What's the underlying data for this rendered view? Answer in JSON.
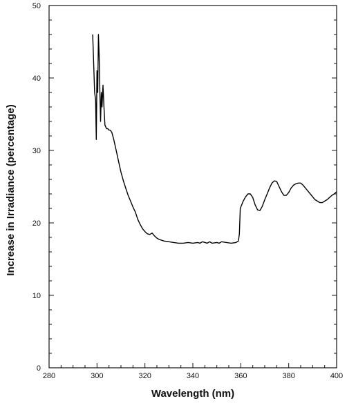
{
  "chart_data": {
    "type": "line",
    "xlabel": "Wavelength (nm)",
    "ylabel": "Increase in Irradiance (percentage)",
    "xlim": [
      280,
      400
    ],
    "ylim": [
      0,
      50
    ],
    "x_ticks": [
      280,
      300,
      320,
      340,
      360,
      380,
      400
    ],
    "y_ticks": [
      0,
      10,
      20,
      30,
      40,
      50
    ],
    "grid": false,
    "series": [
      {
        "x": [
          298.2,
          298.6,
          299.0,
          299.4,
          299.7,
          300.0,
          300.3,
          300.6,
          300.9,
          301.2,
          301.5,
          301.8,
          302.1,
          302.5,
          302.9,
          303.3,
          303.7,
          304.0,
          304.5,
          305.0,
          305.5,
          306.2,
          307.0,
          308.0,
          309.0,
          310.0,
          311.0,
          312.0,
          313.0,
          314.0,
          315.0,
          316.0,
          317.0,
          318.0,
          319.0,
          320.0,
          321.0,
          322.0,
          323.0,
          324.0,
          325.0,
          326.0,
          328.0,
          330.0,
          332.0,
          334.0,
          336.0,
          338.0,
          340.0,
          342.0,
          343.0,
          344.0,
          346.0,
          347.0,
          348.0,
          350.0,
          351.0,
          352.0,
          354.0,
          356.0,
          358.0,
          359.0,
          359.4,
          359.8,
          361.0,
          362.0,
          363.0,
          364.0,
          365.0,
          366.0,
          367.0,
          368.0,
          369.0,
          370.0,
          371.0,
          372.0,
          373.0,
          374.0,
          375.0,
          376.0,
          377.0,
          378.0,
          379.0,
          380.0,
          381.0,
          382.0,
          383.0,
          384.0,
          385.0,
          386.0,
          387.0,
          388.0,
          389.0,
          390.0,
          391.0,
          392.0,
          393.0,
          394.0,
          395.0,
          396.0,
          397.0,
          398.0,
          399.0,
          400.0
        ],
        "y": [
          46.0,
          42.0,
          38.0,
          37.0,
          31.5,
          41.0,
          38.0,
          46.0,
          43.0,
          38.0,
          34.0,
          38.0,
          36.0,
          39.0,
          36.0,
          33.5,
          33.2,
          33.0,
          33.0,
          32.8,
          32.8,
          32.5,
          31.5,
          30.0,
          28.5,
          27.0,
          25.8,
          24.8,
          23.8,
          23.0,
          22.2,
          21.5,
          20.5,
          19.8,
          19.2,
          18.8,
          18.5,
          18.4,
          18.6,
          18.2,
          17.9,
          17.7,
          17.5,
          17.4,
          17.3,
          17.2,
          17.2,
          17.3,
          17.2,
          17.3,
          17.2,
          17.4,
          17.2,
          17.4,
          17.2,
          17.3,
          17.2,
          17.4,
          17.3,
          17.2,
          17.3,
          17.5,
          18.5,
          22.0,
          23.0,
          23.6,
          24.0,
          24.0,
          23.5,
          22.5,
          21.8,
          21.7,
          22.3,
          23.2,
          24.0,
          24.8,
          25.5,
          25.8,
          25.7,
          25.0,
          24.3,
          23.8,
          23.8,
          24.2,
          24.8,
          25.2,
          25.4,
          25.5,
          25.5,
          25.2,
          24.8,
          24.4,
          24.0,
          23.6,
          23.2,
          23.0,
          22.8,
          22.8,
          23.0,
          23.2,
          23.5,
          23.8,
          24.0,
          24.3
        ]
      }
    ]
  }
}
